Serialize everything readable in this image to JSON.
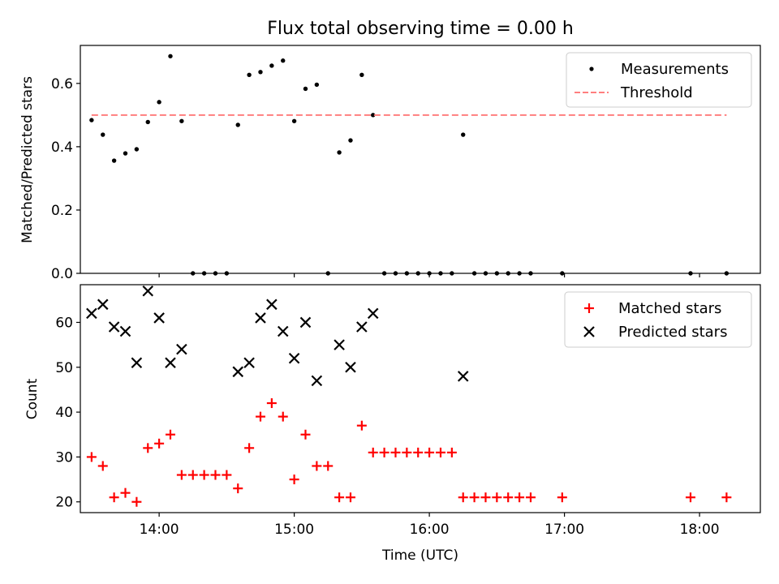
{
  "chart_data": [
    {
      "type": "scatter",
      "title": "Flux total observing time = 0.00 h",
      "xlabel": "",
      "ylabel": "Matched/Predicted stars",
      "xlim": [
        "13:25",
        "18:27"
      ],
      "ylim": [
        0,
        0.72
      ],
      "yticks": [
        0.0,
        0.2,
        0.4,
        0.6
      ],
      "ytick_labels": [
        "0.0",
        "0.2",
        "0.4",
        "0.6"
      ],
      "legend": {
        "position": "upper right",
        "entries": [
          "Measurements",
          "Threshold"
        ]
      },
      "grid": false,
      "series": [
        {
          "name": "Measurements",
          "marker": "dot",
          "color": "#000000",
          "x": [
            "13:30",
            "13:35",
            "13:40",
            "13:45",
            "13:50",
            "13:55",
            "14:00",
            "14:05",
            "14:10",
            "14:15",
            "14:20",
            "14:25",
            "14:30",
            "14:35",
            "14:40",
            "14:45",
            "14:50",
            "14:55",
            "15:00",
            "15:05",
            "15:10",
            "15:15",
            "15:20",
            "15:25",
            "15:30",
            "15:35",
            "15:40",
            "15:45",
            "15:50",
            "15:55",
            "16:00",
            "16:05",
            "16:10",
            "16:15",
            "16:20",
            "16:25",
            "16:30",
            "16:35",
            "16:40",
            "16:45",
            "16:59",
            "17:56",
            "18:12"
          ],
          "y": [
            0.484,
            0.438,
            0.356,
            0.379,
            0.392,
            0.478,
            0.541,
            0.686,
            0.481,
            0.0,
            0.0,
            0.0,
            0.0,
            0.469,
            0.627,
            0.636,
            0.656,
            0.672,
            0.481,
            0.583,
            0.596,
            0.0,
            0.382,
            0.42,
            0.627,
            0.5,
            0.0,
            0.0,
            0.0,
            0.0,
            0.0,
            0.0,
            0.0,
            0.438,
            0.0,
            0.0,
            0.0,
            0.0,
            0.0,
            0.0,
            0.0,
            0.0,
            0.0
          ]
        },
        {
          "name": "Threshold",
          "style": "dashed",
          "color": "#ff7f7f",
          "x": [
            "13:30",
            "18:12"
          ],
          "y": [
            0.5,
            0.5
          ]
        }
      ]
    },
    {
      "type": "scatter",
      "title": "",
      "xlabel": "Time (UTC)",
      "ylabel": "Count",
      "xlim": [
        "13:25",
        "18:27"
      ],
      "ylim": [
        17.6,
        68.4
      ],
      "yticks": [
        20,
        30,
        40,
        50,
        60
      ],
      "ytick_labels": [
        "20",
        "30",
        "40",
        "50",
        "60"
      ],
      "xticks": [
        "14:00",
        "15:00",
        "16:00",
        "17:00",
        "18:00"
      ],
      "xtick_labels": [
        "14:00",
        "15:00",
        "16:00",
        "17:00",
        "18:00"
      ],
      "legend": {
        "position": "upper right",
        "entries": [
          "Matched stars",
          "Predicted stars"
        ]
      },
      "grid": false,
      "series": [
        {
          "name": "Matched stars",
          "marker": "plus",
          "color": "#ff0000",
          "x": [
            "13:30",
            "13:35",
            "13:40",
            "13:45",
            "13:50",
            "13:55",
            "14:00",
            "14:05",
            "14:10",
            "14:15",
            "14:20",
            "14:25",
            "14:30",
            "14:35",
            "14:40",
            "14:45",
            "14:50",
            "14:55",
            "15:00",
            "15:05",
            "15:10",
            "15:15",
            "15:20",
            "15:25",
            "15:30",
            "15:35",
            "15:40",
            "15:45",
            "15:50",
            "15:55",
            "16:00",
            "16:05",
            "16:10",
            "16:15",
            "16:20",
            "16:25",
            "16:30",
            "16:35",
            "16:40",
            "16:45",
            "16:59",
            "17:56",
            "18:12"
          ],
          "y": [
            30,
            28,
            21,
            22,
            20,
            32,
            33,
            35,
            26,
            26,
            26,
            26,
            26,
            23,
            32,
            39,
            42,
            39,
            25,
            35,
            28,
            28,
            21,
            21,
            37,
            31,
            31,
            31,
            31,
            31,
            31,
            31,
            31,
            21,
            21,
            21,
            21,
            21,
            21,
            21,
            21,
            21,
            21
          ]
        },
        {
          "name": "Predicted stars",
          "marker": "x",
          "color": "#000000",
          "x": [
            "13:30",
            "13:35",
            "13:40",
            "13:45",
            "13:50",
            "13:55",
            "14:00",
            "14:05",
            "14:10",
            "14:35",
            "14:40",
            "14:45",
            "14:50",
            "14:55",
            "15:00",
            "15:05",
            "15:10",
            "15:20",
            "15:25",
            "15:30",
            "15:35",
            "16:15"
          ],
          "y": [
            62,
            64,
            59,
            58,
            51,
            67,
            61,
            51,
            54,
            49,
            51,
            61,
            64,
            58,
            52,
            60,
            47,
            55,
            50,
            59,
            62,
            48
          ]
        }
      ]
    }
  ]
}
